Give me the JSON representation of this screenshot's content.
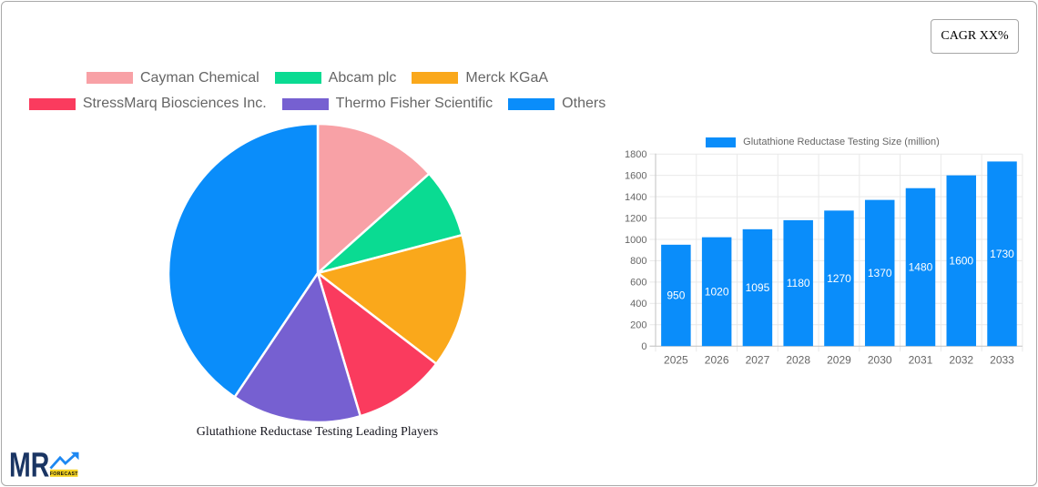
{
  "card": {
    "background": "#ffffff",
    "border_color": "#a9a9a9"
  },
  "cagr_box": {
    "label": "CAGR XX%"
  },
  "logo": {
    "text": "MR",
    "sub_text": "FORECAST",
    "navy": "#1a3563",
    "blue": "#1e88f2",
    "yellow": "#f5d321"
  },
  "chart_data": [
    {
      "type": "pie",
      "title": "Glutathione Reductase Testing Leading Players",
      "labels": [
        "Cayman Chemical",
        "Abcam plc",
        "Merck KGaA",
        "StressMarq Biosciences Inc.",
        "Thermo Fisher Scientific",
        "Others"
      ],
      "values_percent": [
        13.4,
        7.5,
        14.5,
        10.0,
        14.0,
        40.6
      ],
      "colors": [
        "#f8a1a6",
        "#0adb92",
        "#faa81b",
        "#fa3b5e",
        "#7660d1",
        "#0a8dfa"
      ],
      "start_angle": "top",
      "direction": "clockwise",
      "legend_position": "top",
      "slice_border_color": "#ffffff"
    },
    {
      "type": "bar",
      "legend_label": "Glutathione Reductase Testing Size (million)",
      "categories": [
        "2025",
        "2026",
        "2027",
        "2028",
        "2029",
        "2030",
        "2031",
        "2032",
        "2033"
      ],
      "values": [
        950,
        1020,
        1095,
        1180,
        1270,
        1370,
        1480,
        1600,
        1730
      ],
      "bar_color": "#0a8dfa",
      "value_label_color": "#ffffff",
      "ylim": [
        0,
        1800
      ],
      "ytick_step": 200,
      "yticks": [
        "0",
        "200",
        "400",
        "600",
        "800",
        "1000",
        "1200",
        "1400",
        "1600",
        "1800"
      ],
      "grid": true,
      "grid_color": "#e9e9e9",
      "axis_color": "#c2c2c2",
      "tick_label_color": "#666666",
      "legend_position": "top"
    }
  ]
}
